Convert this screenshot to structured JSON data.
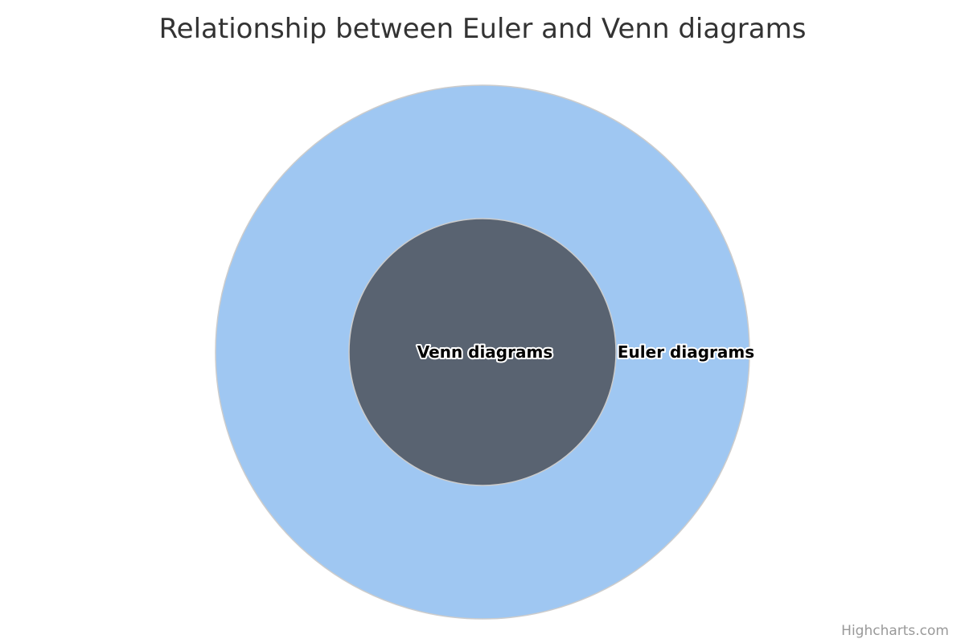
{
  "title": "Relationship between Euler and Venn diagrams",
  "credits": "Highcharts.com",
  "chart_data": {
    "type": "venn",
    "sets": [
      {
        "name": "Euler diagrams",
        "color": "#9fc7f2",
        "contains": [
          "Venn diagrams"
        ]
      },
      {
        "name": "Venn diagrams",
        "color": "#596371"
      }
    ],
    "border_color": "#cccccc"
  }
}
